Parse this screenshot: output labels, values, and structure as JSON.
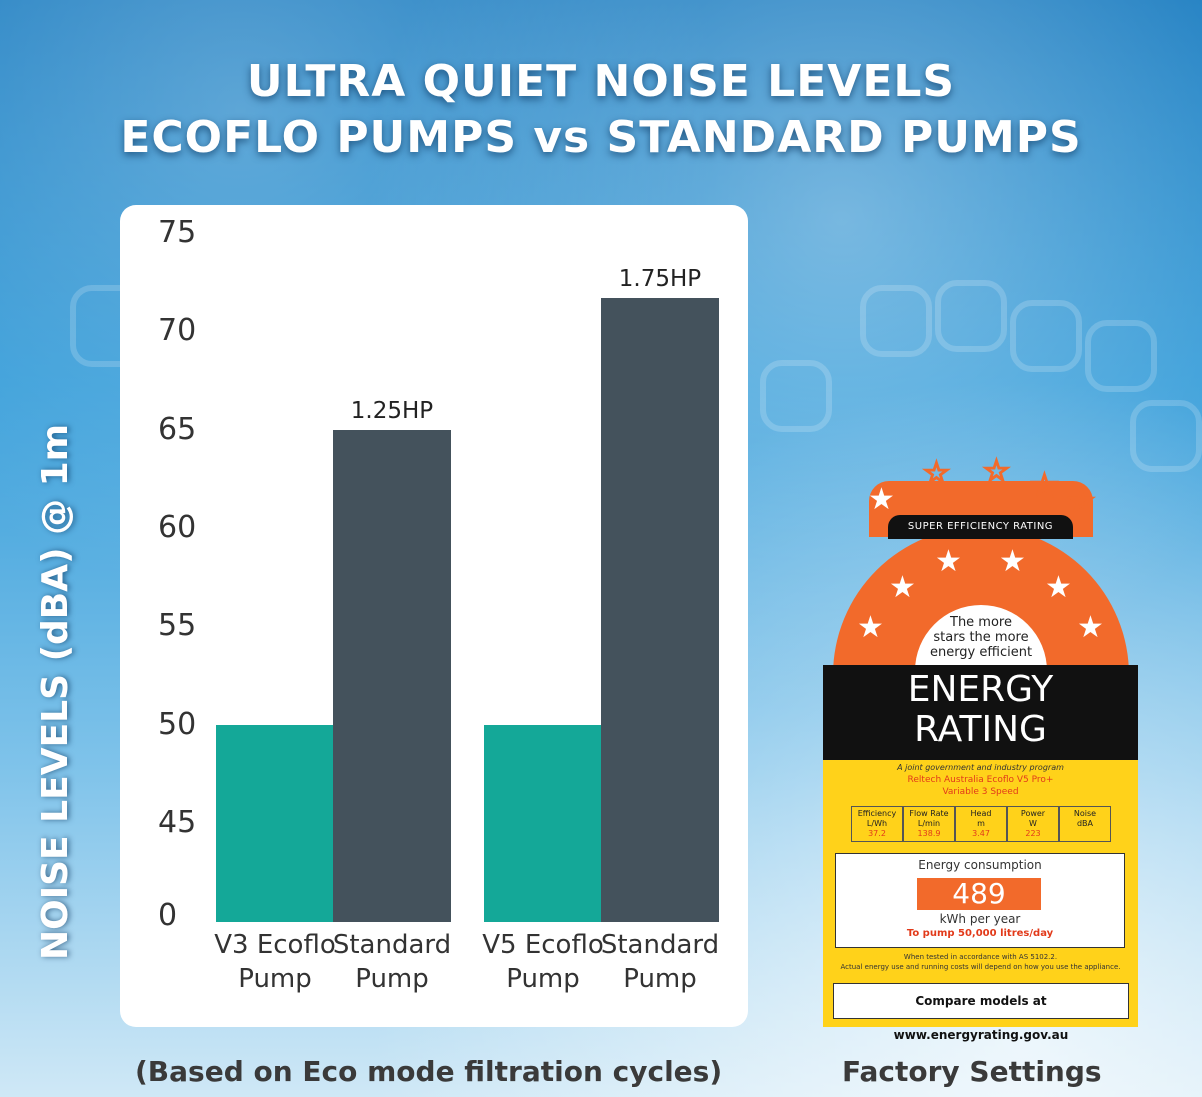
{
  "title": {
    "line1": "ULTRA QUIET NOISE LEVELS",
    "line2": "ECOFLO PUMPS vs STANDARD PUMPS"
  },
  "chart_data": {
    "type": "bar",
    "ylabel": "NOISE LEVELS (dBA)  @ 1m",
    "yticks": [
      "75",
      "70",
      "65",
      "60",
      "55",
      "50",
      "45",
      "0"
    ],
    "categories": [
      {
        "line1": "V3 Ecoflo",
        "line2": "Pump"
      },
      {
        "line1": "Standard",
        "line2": "Pump"
      },
      {
        "line1": "V5 Ecoflo",
        "line2": "Pump"
      },
      {
        "line1": "Standard",
        "line2": "Pump"
      }
    ],
    "values": [
      50,
      65,
      50,
      71.7
    ],
    "bar_labels": [
      "",
      "1.25HP",
      "",
      "1.75HP"
    ],
    "colors": [
      "#14a898",
      "#44525c",
      "#14a898",
      "#44525c"
    ],
    "axis_break": "0 to 45 compressed"
  },
  "footnote": "(Based on Eco mode filtration cycles)",
  "energy_label": {
    "super": "SUPER EFFICIENCY RATING",
    "tagline": [
      "The more",
      "stars the more",
      "energy efficient"
    ],
    "heading": [
      "ENERGY",
      "RATING"
    ],
    "program": "A joint government and industry program",
    "model": [
      "Reltech Australia Ecoflo V5 Pro+",
      "Variable 3 Speed"
    ],
    "table": [
      {
        "h1": "Efficiency",
        "h2": "L/Wh",
        "v": "37.2"
      },
      {
        "h1": "Flow Rate",
        "h2": "L/min",
        "v": "138.9"
      },
      {
        "h1": "Head",
        "h2": "m",
        "v": "3.47"
      },
      {
        "h1": "Power",
        "h2": "W",
        "v": "223"
      },
      {
        "h1": "Noise",
        "h2": "dBA",
        "v": ""
      }
    ],
    "consumption_label": "Energy consumption",
    "consumption_value": "489",
    "consumption_unit": "kWh per year",
    "consumption_note": "To pump 50,000 litres/day",
    "fine1": "When tested in accordance with AS 5102.2.",
    "fine2": "Actual energy use and running costs will depend on how you use the appliance.",
    "compare": "Compare models at www.energyrating.gov.au"
  },
  "caption": "Factory Settings",
  "colors": {
    "ecoflo": "#14a898",
    "standard": "#44525c",
    "label_orange": "#f26a2b",
    "label_yellow": "#ffd21a"
  }
}
